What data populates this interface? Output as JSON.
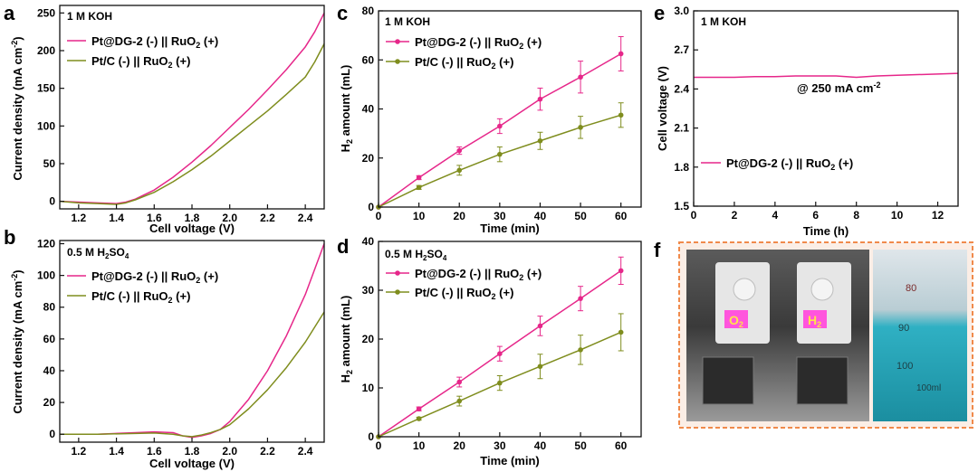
{
  "colors": {
    "pink": "#e6278a",
    "olive": "#7f8d1e",
    "axis": "#111111",
    "photo_border": "#f08a4b"
  },
  "panels": {
    "a": {
      "letter": "a",
      "condition": "1 M KOH"
    },
    "b": {
      "letter": "b",
      "condition_prefix": "0.5 M H",
      "condition_sub": "2",
      "condition_suffix": "SO",
      "condition_sub2": "4"
    },
    "c": {
      "letter": "c",
      "condition": "1 M KOH"
    },
    "d": {
      "letter": "d",
      "condition_prefix": "0.5 M H",
      "condition_sub": "2",
      "condition_suffix": "SO",
      "condition_sub2": "4"
    },
    "e": {
      "letter": "e",
      "condition": "1 M KOH",
      "annotation": "@ 250 mA cm",
      "annotation_sup": "-2"
    },
    "f": {
      "letter": "f",
      "o2_label": "O",
      "o2_sub": "2",
      "h2_label": "H",
      "h2_sub": "2",
      "cyl_marks": [
        "80",
        "90",
        "100",
        "100ml"
      ]
    }
  },
  "legend": {
    "pt_dg": {
      "text": "Pt@DG-2 (-) || RuO",
      "sub": "2",
      "suffix": " (+)"
    },
    "pt_c": {
      "text": "Pt/C (-) || RuO",
      "sub": "2",
      "suffix": " (+)"
    }
  },
  "axes": {
    "a": {
      "xlabel": "Cell voltage (V)",
      "ylabel": "Current density (mA cm",
      "ylabel_sup": "-2",
      "ylabel_end": ")",
      "xticks": [
        "1.2",
        "1.4",
        "1.6",
        "1.8",
        "2.0",
        "2.2",
        "2.4"
      ],
      "yticks": [
        "0",
        "50",
        "100",
        "150",
        "200",
        "250"
      ]
    },
    "b": {
      "xlabel": "Cell voltage (V)",
      "ylabel": "Current density (mA cm",
      "ylabel_sup": "-2",
      "ylabel_end": ")",
      "xticks": [
        "1.2",
        "1.4",
        "1.6",
        "1.8",
        "2.0",
        "2.2",
        "2.4"
      ],
      "yticks": [
        "0",
        "20",
        "40",
        "60",
        "80",
        "100",
        "120"
      ]
    },
    "c": {
      "xlabel": "Time (min)",
      "ylabel_prefix": "H",
      "ylabel_sub": "2",
      "ylabel_rest": " amount (mL)",
      "xticks": [
        "0",
        "10",
        "20",
        "30",
        "40",
        "50",
        "60"
      ],
      "yticks": [
        "0",
        "20",
        "40",
        "60",
        "80"
      ]
    },
    "d": {
      "xlabel": "Time (min)",
      "ylabel_prefix": "H",
      "ylabel_sub": "2",
      "ylabel_rest": " amount (mL)",
      "xticks": [
        "0",
        "10",
        "20",
        "30",
        "40",
        "50",
        "60"
      ],
      "yticks": [
        "0",
        "10",
        "20",
        "30",
        "40"
      ]
    },
    "e": {
      "xlabel": "Time (h)",
      "ylabel": "Cell voltage (V)",
      "xticks": [
        "0",
        "2",
        "4",
        "6",
        "8",
        "10",
        "12"
      ],
      "yticks": [
        "1.5",
        "1.8",
        "2.1",
        "2.4",
        "2.7",
        "3.0"
      ]
    }
  },
  "chart_data": [
    {
      "panel": "a",
      "type": "line",
      "xlim": [
        1.1,
        2.5
      ],
      "ylim": [
        -10,
        260
      ],
      "series": [
        {
          "name": "Pt@DG-2 (-) || RuO2 (+)",
          "color": "#e6278a",
          "x": [
            1.1,
            1.2,
            1.3,
            1.4,
            1.45,
            1.5,
            1.6,
            1.7,
            1.8,
            1.9,
            2.0,
            2.1,
            2.2,
            2.3,
            2.4,
            2.45,
            2.5
          ],
          "y": [
            0,
            -1,
            -2,
            -3,
            -1,
            3,
            15,
            32,
            52,
            74,
            98,
            122,
            148,
            175,
            205,
            225,
            250
          ]
        },
        {
          "name": "Pt/C (-) || RuO2 (+)",
          "color": "#7f8d1e",
          "x": [
            1.1,
            1.2,
            1.3,
            1.4,
            1.45,
            1.5,
            1.6,
            1.7,
            1.8,
            1.9,
            2.0,
            2.1,
            2.2,
            2.3,
            2.4,
            2.45,
            2.5
          ],
          "y": [
            0,
            -2,
            -3,
            -4,
            -2,
            2,
            12,
            26,
            42,
            60,
            80,
            100,
            120,
            142,
            165,
            185,
            209
          ]
        }
      ]
    },
    {
      "panel": "b",
      "type": "line",
      "xlim": [
        1.1,
        2.5
      ],
      "ylim": [
        -5,
        122
      ],
      "series": [
        {
          "name": "Pt@DG-2 (-) || RuO2 (+)",
          "color": "#e6278a",
          "x": [
            1.1,
            1.3,
            1.5,
            1.6,
            1.7,
            1.75,
            1.8,
            1.85,
            1.9,
            1.95,
            2.0,
            2.1,
            2.2,
            2.3,
            2.4,
            2.5
          ],
          "y": [
            0,
            0,
            1,
            1.5,
            1,
            -1,
            -2,
            -1,
            0.5,
            3,
            8,
            22,
            40,
            62,
            88,
            120
          ]
        },
        {
          "name": "Pt/C (-) || RuO2 (+)",
          "color": "#7f8d1e",
          "x": [
            1.1,
            1.3,
            1.5,
            1.6,
            1.7,
            1.75,
            1.8,
            1.85,
            1.9,
            1.95,
            2.0,
            2.1,
            2.2,
            2.3,
            2.4,
            2.5
          ],
          "y": [
            0,
            0,
            0.5,
            0.8,
            0,
            -1,
            -1.5,
            -0.5,
            1,
            3,
            6,
            16,
            28,
            42,
            58,
            77
          ]
        }
      ]
    },
    {
      "panel": "c",
      "type": "line",
      "xlim": [
        0,
        65
      ],
      "ylim": [
        0,
        80
      ],
      "series": [
        {
          "name": "Pt@DG-2 (-) || RuO2 (+)",
          "color": "#e6278a",
          "x": [
            0,
            10,
            20,
            30,
            40,
            50,
            60
          ],
          "y": [
            0,
            12,
            23,
            33,
            44,
            53,
            62.5
          ],
          "err": [
            0,
            0.8,
            1.5,
            3,
            4.5,
            6.5,
            7
          ]
        },
        {
          "name": "Pt/C (-) || RuO2 (+)",
          "color": "#7f8d1e",
          "x": [
            0,
            10,
            20,
            30,
            40,
            50,
            60
          ],
          "y": [
            0,
            8,
            15,
            21.5,
            27,
            32.5,
            37.5
          ],
          "err": [
            0,
            0.8,
            2,
            3,
            3.5,
            4.5,
            5
          ]
        }
      ]
    },
    {
      "panel": "d",
      "type": "line",
      "xlim": [
        0,
        65
      ],
      "ylim": [
        0,
        40
      ],
      "series": [
        {
          "name": "Pt@DG-2 (-) || RuO2 (+)",
          "color": "#e6278a",
          "x": [
            0,
            10,
            20,
            30,
            40,
            50,
            60
          ],
          "y": [
            0,
            5.7,
            11.2,
            17,
            22.7,
            28.3,
            34
          ],
          "err": [
            0,
            0.4,
            1,
            1.5,
            2,
            2.5,
            2.8
          ]
        },
        {
          "name": "Pt/C (-) || RuO2 (+)",
          "color": "#7f8d1e",
          "x": [
            0,
            10,
            20,
            30,
            40,
            50,
            60
          ],
          "y": [
            0,
            3.7,
            7.3,
            11,
            14.4,
            17.8,
            21.4
          ],
          "err": [
            0,
            0.3,
            1,
            1.5,
            2.5,
            3,
            3.8
          ]
        }
      ]
    },
    {
      "panel": "e",
      "type": "line",
      "xlim": [
        0,
        13
      ],
      "ylim": [
        1.5,
        3.0
      ],
      "series": [
        {
          "name": "Pt@DG-2 (-) || RuO2 (+)",
          "color": "#e6278a",
          "x": [
            0,
            1,
            2,
            3,
            4,
            5,
            6,
            7,
            8,
            9,
            10,
            11,
            12,
            13
          ],
          "y": [
            2.49,
            2.49,
            2.49,
            2.495,
            2.495,
            2.5,
            2.5,
            2.5,
            2.49,
            2.5,
            2.505,
            2.51,
            2.515,
            2.52
          ]
        }
      ]
    }
  ]
}
